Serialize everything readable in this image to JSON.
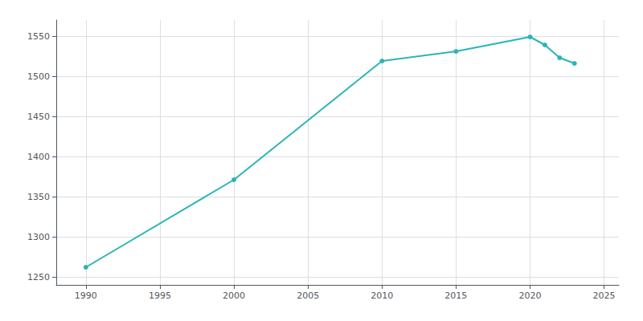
{
  "chart_data": {
    "type": "line",
    "x": [
      1990,
      2000,
      2010,
      2015,
      2020,
      2021,
      2022,
      2023
    ],
    "values": [
      1262,
      1371,
      1519,
      1531,
      1549,
      1539,
      1523,
      1516
    ],
    "color": "#2ab5b5",
    "marker": "circle",
    "xlim": [
      1988,
      2026
    ],
    "xticks": [
      1990,
      1995,
      2000,
      2005,
      2010,
      2015,
      2020,
      2025
    ],
    "ylim": [
      1240,
      1570
    ],
    "yticks": [
      1250,
      1300,
      1350,
      1400,
      1450,
      1500,
      1550
    ],
    "grid": true
  }
}
